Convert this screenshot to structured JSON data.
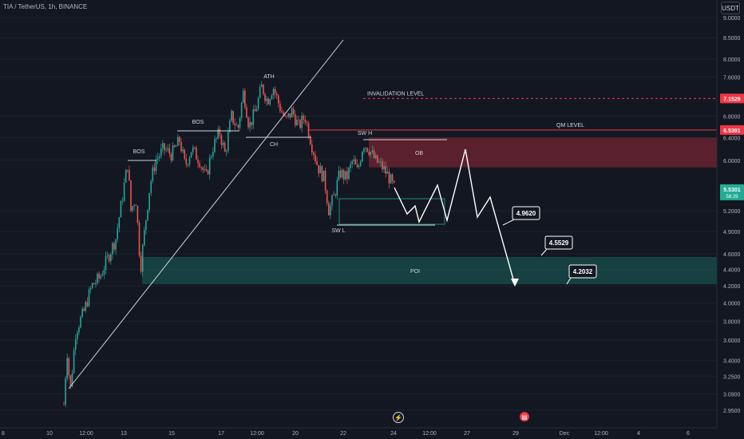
{
  "header": {
    "symbol": "TIA / TetherUS, 1h, BINANCE"
  },
  "currency_button": "USDT",
  "chart_data": {
    "type": "candlestick",
    "title": "TIA / TetherUS, 1h, BINANCE",
    "y_axis": {
      "scale": "log",
      "ticks": [
        "2.9500",
        "3.0900",
        "3.2500",
        "3.4000",
        "3.6000",
        "3.8000",
        "4.0000",
        "4.2000",
        "4.4000",
        "4.6000",
        "4.9000",
        "5.2000",
        "6.0000",
        "6.4000",
        "6.8000",
        "7.6000",
        "8.0000",
        "8.5000",
        "9.0000"
      ],
      "ylim": [
        2.85,
        9.2
      ]
    },
    "x_axis": {
      "ticks": [
        "8",
        "10",
        "12:00",
        "13",
        "15",
        "17",
        "12:00",
        "20",
        "22",
        "24",
        "12:00",
        "27",
        "29",
        "Dec",
        "12:00",
        "4",
        "6"
      ]
    },
    "price_labels": {
      "invalidation": "7.1529",
      "qm": "6.5391",
      "current": "5.5301",
      "countdown": "58:29"
    },
    "levels": [
      {
        "name": "INVALIDATION LEVEL",
        "value": 7.1529,
        "style": "dashed",
        "color": "#f23645"
      },
      {
        "name": "QM LEVEL",
        "value": 6.5391,
        "style": "solid",
        "color": "#f23645"
      }
    ],
    "zones": [
      {
        "label": "OB",
        "low": 5.88,
        "high": 6.4,
        "color": "#f23645"
      },
      {
        "label": "POI",
        "low": 4.22,
        "high": 4.56,
        "color": "#22ab94"
      }
    ],
    "annotations": [
      "BOS",
      "BOS",
      "ATH",
      "CH",
      "SW H",
      "SW L"
    ],
    "targets": [
      "4.9620",
      "4.5529",
      "4.2032"
    ]
  },
  "colors": {
    "up": "#26a69a",
    "down": "#ef5350",
    "background": "#131722"
  }
}
